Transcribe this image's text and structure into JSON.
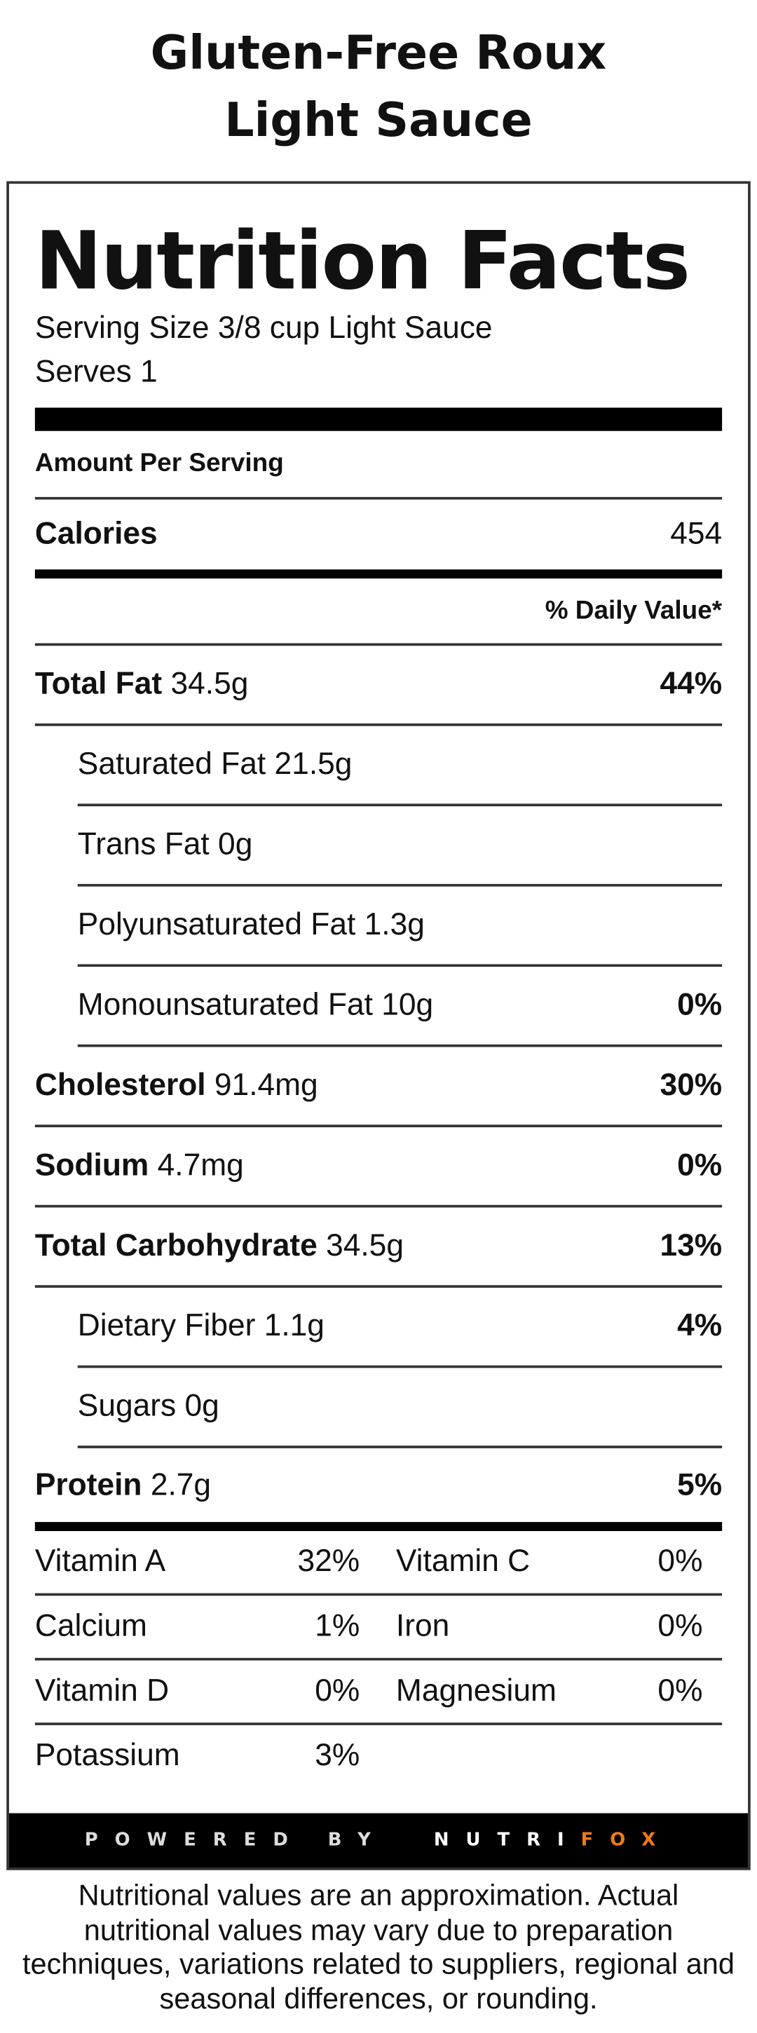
{
  "title": "Gluten-Free Roux Light Sauce",
  "label": {
    "heading": "Nutrition Facts",
    "serving_size": "Serving Size 3/8 cup Light Sauce",
    "serves": "Serves 1",
    "amount_per_serving": "Amount Per Serving",
    "calories": {
      "name": "Calories",
      "value": "454"
    },
    "daily_value_header": "% Daily Value*",
    "nutrients": [
      {
        "name": "Total Fat",
        "amount": "34.5g",
        "dv": "44%",
        "sub": [
          {
            "name": "Saturated Fat",
            "amount": "21.5g"
          },
          {
            "name": "Trans Fat",
            "amount": "0g"
          },
          {
            "name": "Polyunsaturated Fat",
            "amount": "1.3g"
          },
          {
            "name": "Monounsaturated Fat",
            "amount": "10g",
            "dv": "0%"
          }
        ]
      },
      {
        "name": "Cholesterol",
        "amount": "91.4mg",
        "dv": "30%"
      },
      {
        "name": "Sodium",
        "amount": "4.7mg",
        "dv": "0%"
      },
      {
        "name": "Total Carbohydrate",
        "amount": "34.5g",
        "dv": "13%",
        "sub": [
          {
            "name": "Dietary Fiber",
            "amount": "1.1g",
            "dv": "4%"
          },
          {
            "name": "Sugars",
            "amount": "0g"
          }
        ]
      },
      {
        "name": "Protein",
        "amount": "2.7g",
        "dv": "5%"
      }
    ],
    "vitamins": [
      [
        {
          "name": "Vitamin A",
          "dv": "32%"
        },
        {
          "name": "Vitamin C",
          "dv": "0%"
        }
      ],
      [
        {
          "name": "Calcium",
          "dv": "1%"
        },
        {
          "name": "Iron",
          "dv": "0%"
        }
      ],
      [
        {
          "name": "Vitamin D",
          "dv": "0%"
        },
        {
          "name": "Magnesium",
          "dv": "0%"
        }
      ],
      [
        {
          "name": "Potassium",
          "dv": "3%"
        }
      ]
    ],
    "footer": {
      "powered_by": "POWERED BY",
      "brand_a": "NUTRI",
      "brand_b": "FOX"
    }
  },
  "disclaimer": "Nutritional values are an approximation. Actual nutritional values may vary due to preparation techniques, variations related to suppliers, regional and seasonal differences, or rounding."
}
